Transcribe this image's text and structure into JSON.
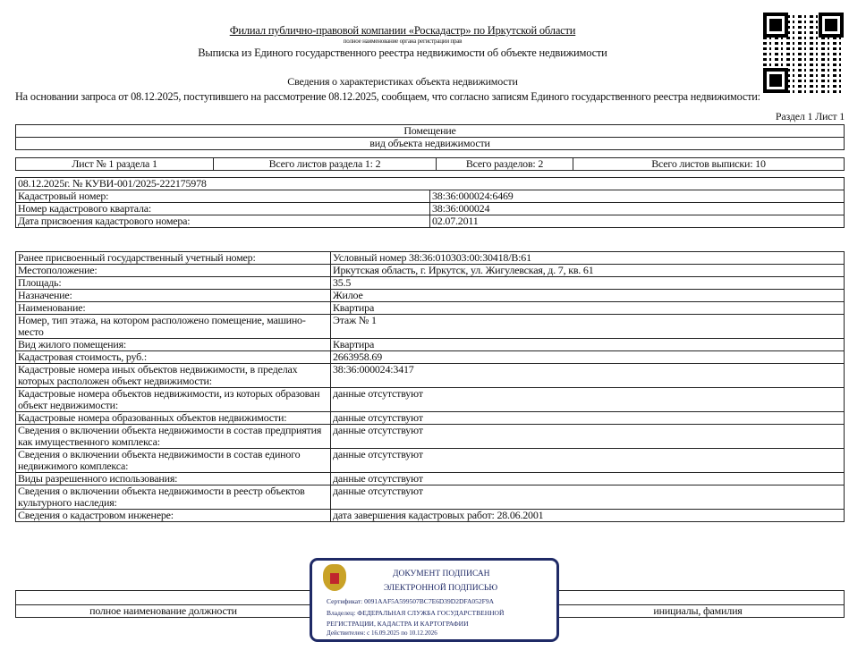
{
  "header": {
    "org": "Филиал публично-правовой компании «Роскадастр» по Иркутской области",
    "org_caption": "полное наименование органа регистрации прав",
    "title": "Выписка из Единого государственного реестра недвижимости об объекте недвижимости",
    "subtitle": "Сведения о характеристиках объекта недвижимости",
    "intro": "На  основании запроса от 08.12.2025, поступившего на рассмотрение 08.12.2025, сообщаем, что согласно записям Единого государственного реестра недвижимости:",
    "section": "Раздел 1 Лист 1"
  },
  "object": {
    "type": "Помещение",
    "type_caption": "вид объекта недвижимости"
  },
  "sheets": [
    "Лист № 1 раздела 1",
    "Всего листов раздела 1: 2",
    "Всего разделов: 2",
    "Всего листов выписки: 10"
  ],
  "doc_number": "08.12.2025г. № КУВИ-001/2025-222175978",
  "info1": [
    [
      "Кадастровый номер:",
      "38:36:000024:6469"
    ],
    [
      "Номер кадастрового квартала:",
      "38:36:000024"
    ],
    [
      "Дата присвоения кадастрового номера:",
      "02.07.2011"
    ]
  ],
  "info2": [
    [
      "Ранее присвоенный государственный учетный номер:",
      "Условный номер 38:36:010303:00:30418/В:61"
    ],
    [
      "Местоположение:",
      "Иркутская область, г. Иркутск, ул. Жигулевская, д. 7, кв. 61"
    ],
    [
      "Площадь:",
      "35.5"
    ],
    [
      "Назначение:",
      "Жилое"
    ],
    [
      "Наименование:",
      "Квартира"
    ],
    [
      "Номер, тип этажа, на котором расположено помещение, машино-место",
      "Этаж № 1"
    ],
    [
      "Вид жилого помещения:",
      "Квартира"
    ],
    [
      "Кадастровая стоимость, руб.:",
      "2663958.69"
    ],
    [
      "Кадастровые номера иных объектов недвижимости, в пределах которых расположен объект недвижимости:",
      "38:36:000024:3417"
    ],
    [
      "Кадастровые номера объектов недвижимости, из которых образован объект недвижимости:",
      "данные отсутствуют"
    ],
    [
      "Кадастровые номера образованных объектов недвижимости:",
      "данные отсутствуют"
    ],
    [
      "Сведения о включении объекта недвижимости в состав предприятия как имущественного комплекса:",
      "данные отсутствуют"
    ],
    [
      "Сведения о включении объекта недвижимости в состав единого недвижимого комплекса:",
      "данные отсутствуют"
    ],
    [
      "Виды разрешенного использования:",
      "данные отсутствуют"
    ],
    [
      "Сведения о включении объекта недвижимости в реестр объектов культурного наследия:",
      "данные отсутствуют"
    ],
    [
      "Сведения о кадастровом инженере:",
      "дата завершения кадастровых работ: 28.06.2001"
    ]
  ],
  "footer": {
    "position_label": "полное наименование должности",
    "name_label": "инициалы, фамилия"
  },
  "stamp": {
    "line1": "ДОКУМЕНТ ПОДПИСАН",
    "line2": "ЭЛЕКТРОННОЙ ПОДПИСЬЮ",
    "cert": "Сертификат: 0091AAF5A599507BC7E6D39D2DFA052F9A",
    "owner1": "Владелец: ФЕДЕРАЛЬНАЯ СЛУЖБА ГОСУДАРСТВЕННОЙ",
    "owner2": "РЕГИСТРАЦИИ, КАДАСТРА И КАРТОГРАФИИ",
    "valid": "Действителен: с 16.09.2025 по 10.12.2026",
    "color": "#1f2a66"
  }
}
